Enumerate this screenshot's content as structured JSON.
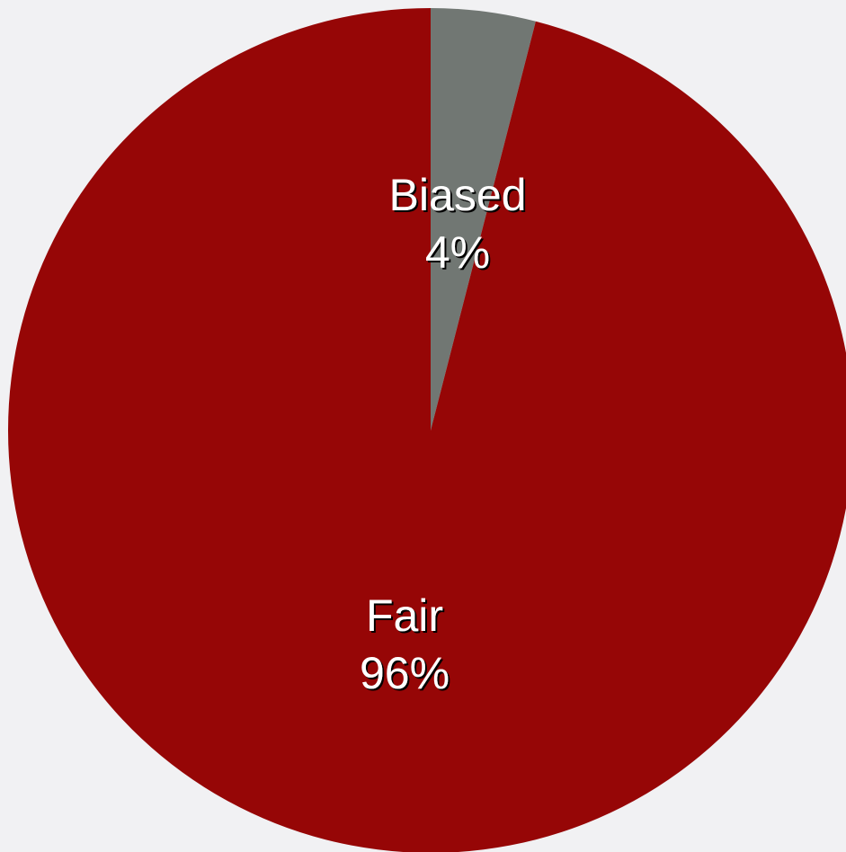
{
  "chart_data": {
    "type": "pie",
    "start_angle": "12 o'clock",
    "direction": "clockwise",
    "slices": [
      {
        "label": "Biased",
        "value": 4,
        "value_label": "4%",
        "color": "#717773"
      },
      {
        "label": "Fair",
        "value": 96,
        "value_label": "96%",
        "color": "#960606"
      }
    ]
  },
  "colors": {
    "background": "#f1f1f3",
    "label_text": "#ffffff",
    "label_shadow": "#000000"
  }
}
